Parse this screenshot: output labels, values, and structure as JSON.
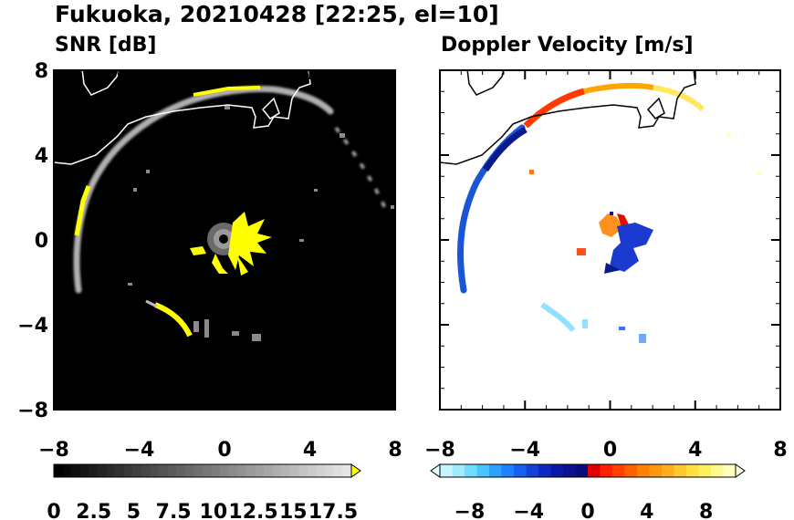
{
  "title": "Fukuoka, 20210428 [22:25, el=10]",
  "colors": {
    "snr_background": "#000000",
    "snr_highlight": "#ffff00",
    "map_line": "#000000"
  },
  "chart_data": [
    {
      "type": "heatmap",
      "title": "SNR [dB]",
      "xlim": [
        -8,
        8
      ],
      "ylim": [
        -8,
        8
      ],
      "x_ticks": [
        "−8",
        "−4",
        "0",
        "4",
        "8"
      ],
      "y_ticks": [
        "8",
        "4",
        "0",
        "−4",
        "−8"
      ],
      "colorbar": {
        "ticks": [
          "0",
          "2.5",
          "5",
          "7.5",
          "10",
          "12.5",
          "15",
          "17.5"
        ],
        "range": [
          0,
          17.5
        ],
        "extend": "max",
        "colormap": "gray-to-white, yellow over"
      }
    },
    {
      "type": "heatmap",
      "title": "Doppler Velocity [m/s]",
      "xlim": [
        -8,
        8
      ],
      "ylim": [
        -8,
        8
      ],
      "x_ticks": [
        "−8",
        "−4",
        "0",
        "4",
        "8"
      ],
      "y_ticks": [],
      "colorbar": {
        "ticks": [
          "−8",
          "−4",
          "0",
          "4",
          "8"
        ],
        "range": [
          -10,
          10
        ],
        "extend": "both",
        "colormap": "light cyan-blue-navy / red-orange-yellow-light yellow"
      }
    }
  ]
}
